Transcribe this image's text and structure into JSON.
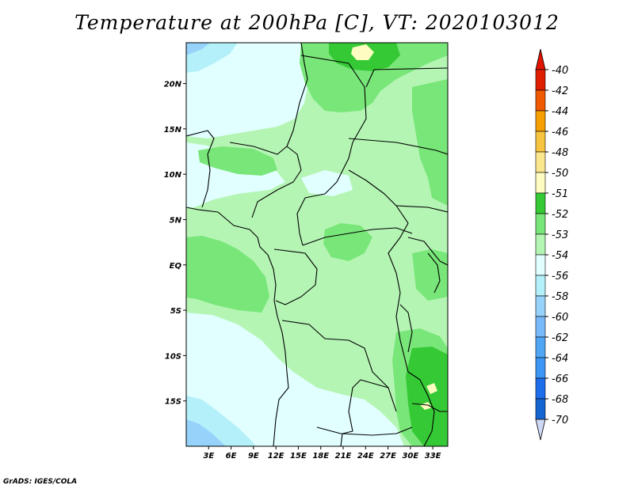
{
  "title": "Temperature at 200hPa [C], VT: 2020103012",
  "credit": "GrADS: IGES/COLA",
  "map": {
    "lon_range": [
      0,
      35
    ],
    "lat_range": [
      -20,
      24.5
    ],
    "lat_ticks": [
      {
        "value": 20,
        "label": "20N"
      },
      {
        "value": 15,
        "label": "15N"
      },
      {
        "value": 10,
        "label": "10N"
      },
      {
        "value": 5,
        "label": "5N"
      },
      {
        "value": 0,
        "label": "EQ"
      },
      {
        "value": -5,
        "label": "5S"
      },
      {
        "value": -10,
        "label": "10S"
      },
      {
        "value": -15,
        "label": "15S"
      }
    ],
    "lon_ticks": [
      {
        "value": 3,
        "label": "3E"
      },
      {
        "value": 6,
        "label": "6E"
      },
      {
        "value": 9,
        "label": "9E"
      },
      {
        "value": 12,
        "label": "12E"
      },
      {
        "value": 15,
        "label": "15E"
      },
      {
        "value": 18,
        "label": "18E"
      },
      {
        "value": 21,
        "label": "21E"
      },
      {
        "value": 24,
        "label": "24E"
      },
      {
        "value": 27,
        "label": "27E"
      },
      {
        "value": 30,
        "label": "30E"
      },
      {
        "value": 33,
        "label": "33E"
      }
    ]
  },
  "colorbar": {
    "levels": [
      {
        "label": "-40",
        "color": "#a00000"
      },
      {
        "label": "-42",
        "color": "#e01e00"
      },
      {
        "label": "-44",
        "color": "#f05a00"
      },
      {
        "label": "-46",
        "color": "#f5a000"
      },
      {
        "label": "-48",
        "color": "#f7c440"
      },
      {
        "label": "-50",
        "color": "#fae68c"
      },
      {
        "label": "-51",
        "color": "#fefcc0"
      },
      {
        "label": "-52",
        "color": "#36c936"
      },
      {
        "label": "-53",
        "color": "#78e678"
      },
      {
        "label": "-54",
        "color": "#b4f5b4"
      },
      {
        "label": "-56",
        "color": "#e1ffff"
      },
      {
        "label": "-58",
        "color": "#b4f0fa"
      },
      {
        "label": "-60",
        "color": "#96d2fa"
      },
      {
        "label": "-62",
        "color": "#78b9fa"
      },
      {
        "label": "-64",
        "color": "#50a5f5"
      },
      {
        "label": "-66",
        "color": "#3c96f5"
      },
      {
        "label": "-68",
        "color": "#1e6eeb"
      },
      {
        "label": "-70",
        "color": "#1464d2"
      }
    ],
    "top_color": "#e11400",
    "bottom_color": "#cfd9f5",
    "extra_colors": [
      "#0a3cb4",
      "#000064"
    ]
  }
}
